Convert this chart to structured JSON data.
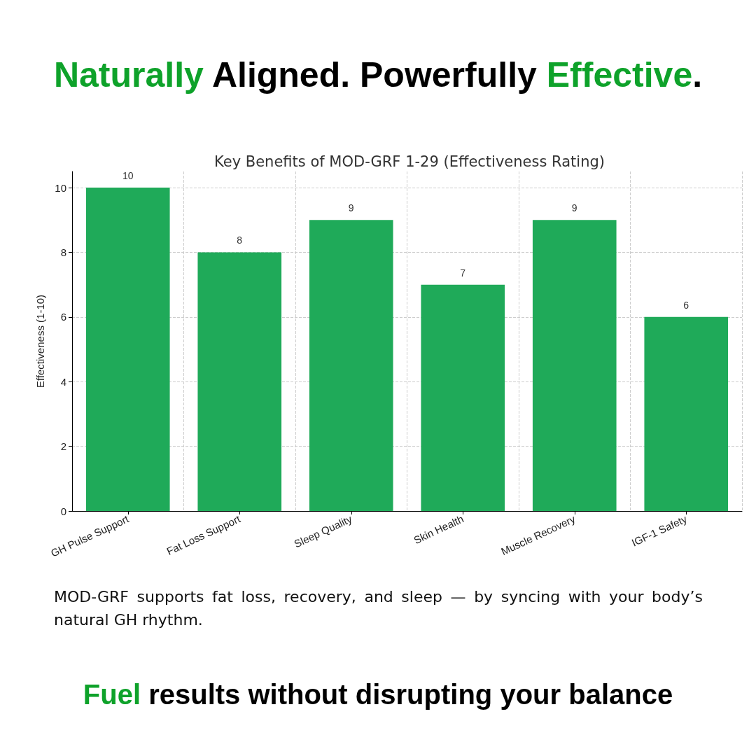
{
  "chart_data": {
    "type": "bar",
    "title": "Naturally Aligned. Powerfully Effective.",
    "subtitle": "Key Benefits of MOD-GRF 1-29 (Effectiveness Rating)",
    "ylabel": "Effectiveness (1-10)",
    "categories": [
      "GH Pulse Support",
      "Fat Loss Support",
      "Sleep Quality",
      "Skin Health",
      "Muscle Recovery",
      "IGF-1 Safety"
    ],
    "values": [
      10,
      8,
      9,
      7,
      9,
      6
    ],
    "color": "#1faa59",
    "ylim": [
      0,
      10.5
    ],
    "yticks": [
      0,
      2,
      4,
      6,
      8,
      10
    ],
    "grid": true,
    "data_labels": true,
    "annotations": [
      "MOD-GRF supports fat loss, recovery, and sleep — by syncing with your body’s natural GH rhythm.",
      "Fuel results without disrupting your balance"
    ]
  }
}
